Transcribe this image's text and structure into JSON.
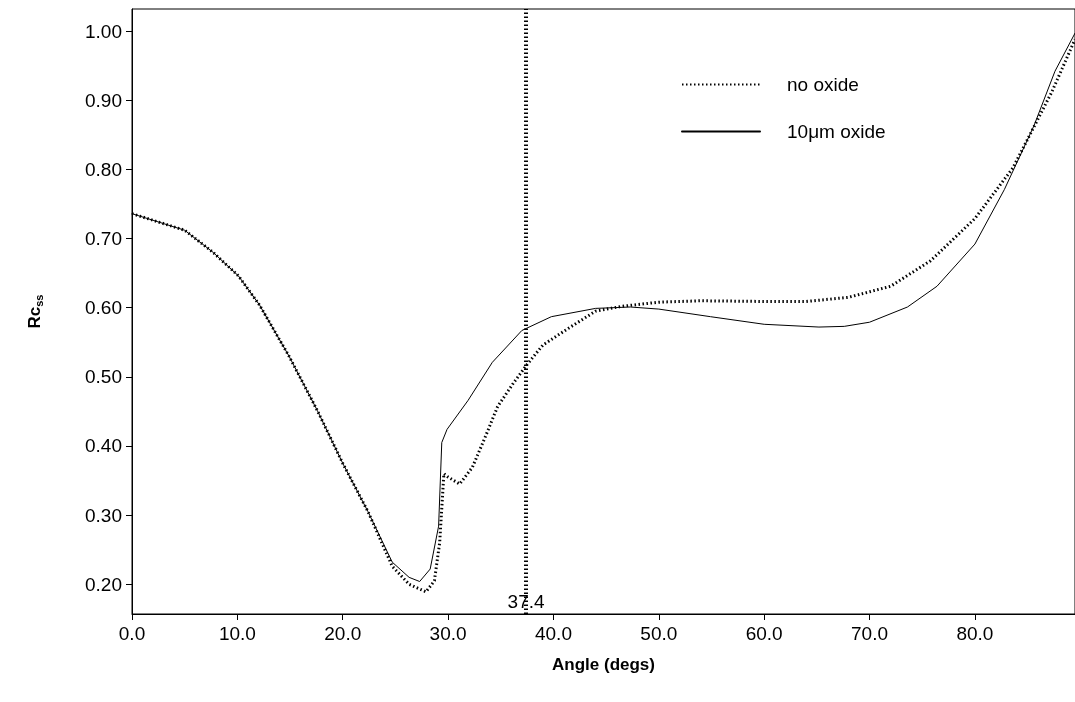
{
  "chart_data": {
    "type": "line",
    "xlabel": "Angle (degs)",
    "ylabel": "Rc$_{ss}$",
    "xlim": [
      0,
      89.5
    ],
    "ylim": [
      0.157,
      1.032
    ],
    "xticks": [
      {
        "value": 0,
        "label": "0.0"
      },
      {
        "value": 10,
        "label": "10.0"
      },
      {
        "value": 20,
        "label": "20.0"
      },
      {
        "value": 30,
        "label": "30.0"
      },
      {
        "value": 40,
        "label": "40.0"
      },
      {
        "value": 50,
        "label": "50.0"
      },
      {
        "value": 60,
        "label": "60.0"
      },
      {
        "value": 70,
        "label": "70.0"
      },
      {
        "value": 80,
        "label": "80.0"
      }
    ],
    "yticks": [
      {
        "value": 0.2,
        "label": "0.20"
      },
      {
        "value": 0.3,
        "label": "0.30"
      },
      {
        "value": 0.4,
        "label": "0.40"
      },
      {
        "value": 0.5,
        "label": "0.50"
      },
      {
        "value": 0.6,
        "label": "0.60"
      },
      {
        "value": 0.7,
        "label": "0.70"
      },
      {
        "value": 0.8,
        "label": "0.80"
      },
      {
        "value": 0.9,
        "label": "0.90"
      },
      {
        "value": 1.0,
        "label": "1.00"
      }
    ],
    "grid": false,
    "legend": "top right",
    "marker": "none",
    "ref_lines": [
      {
        "axis": "x",
        "value": 37.4,
        "label": "37.4",
        "color": "#000000",
        "line_style": "dotted"
      }
    ],
    "series": [
      {
        "name": "no oxide",
        "color": "#000000",
        "line_style": "dotted",
        "x": [
          0,
          5.0,
          7.7,
          10.1,
          12.1,
          14.9,
          17.6,
          20.0,
          22.4,
          24.7,
          26.3,
          27.9,
          28.7,
          29.2,
          29.6,
          30.0,
          31.1,
          32.3,
          33.5,
          34.7,
          36.2,
          37.4,
          39.0,
          41.4,
          44.0,
          46.5,
          50,
          54,
          60,
          64,
          68,
          72,
          75.8,
          80,
          83.6,
          87.3,
          89.5
        ],
        "values": [
          0.736,
          0.712,
          0.68,
          0.646,
          0.604,
          0.53,
          0.451,
          0.375,
          0.305,
          0.226,
          0.2,
          0.189,
          0.205,
          0.26,
          0.36,
          0.355,
          0.345,
          0.369,
          0.412,
          0.457,
          0.491,
          0.516,
          0.546,
          0.57,
          0.595,
          0.602,
          0.608,
          0.61,
          0.609,
          0.609,
          0.615,
          0.631,
          0.668,
          0.729,
          0.802,
          0.912,
          0.988
        ]
      },
      {
        "name": "10μm oxide",
        "color": "#000000",
        "line_style": "solid",
        "x": [
          0,
          5.0,
          7.7,
          10.1,
          12.1,
          14.9,
          17.6,
          20.0,
          22.4,
          24.7,
          26.3,
          27.3,
          28.3,
          29.1,
          29.4,
          29.9,
          31.9,
          34.2,
          37.0,
          39.8,
          44.0,
          47.3,
          50,
          54.9,
          60,
          65.2,
          67.6,
          70,
          73.6,
          76.4,
          80,
          82.8,
          85.6,
          87.6,
          89.5
        ],
        "values": [
          0.736,
          0.712,
          0.68,
          0.646,
          0.604,
          0.53,
          0.451,
          0.375,
          0.305,
          0.232,
          0.21,
          0.204,
          0.222,
          0.284,
          0.405,
          0.424,
          0.466,
          0.521,
          0.567,
          0.587,
          0.599,
          0.601,
          0.598,
          0.587,
          0.576,
          0.572,
          0.573,
          0.579,
          0.601,
          0.631,
          0.692,
          0.771,
          0.863,
          0.942,
          0.997
        ]
      }
    ]
  }
}
